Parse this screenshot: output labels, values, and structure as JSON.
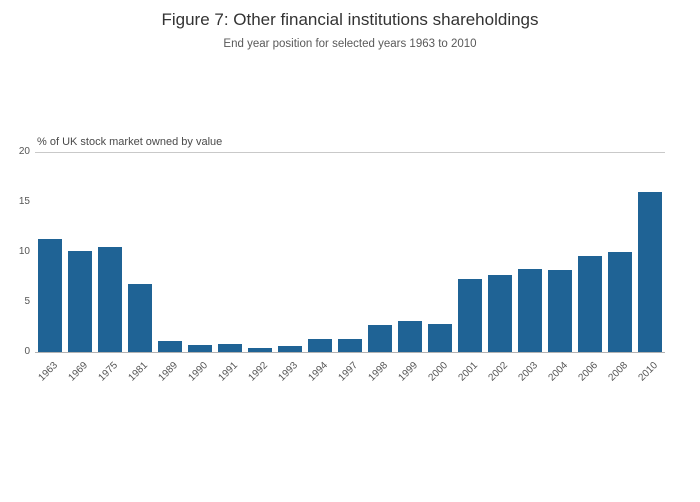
{
  "chart_data": {
    "type": "bar",
    "title": "Figure 7: Other financial institutions shareholdings",
    "subtitle": "End year position for selected years 1963 to 2010",
    "ylabel": "% of UK stock market owned by value",
    "xlabel": "",
    "categories": [
      "1963",
      "1969",
      "1975",
      "1981",
      "1989",
      "1990",
      "1991",
      "1992",
      "1993",
      "1994",
      "1997",
      "1998",
      "1999",
      "2000",
      "2001",
      "2002",
      "2003",
      "2004",
      "2006",
      "2008",
      "2010"
    ],
    "values": [
      11.3,
      10.1,
      10.5,
      6.8,
      1.1,
      0.7,
      0.8,
      0.4,
      0.6,
      1.3,
      1.3,
      2.7,
      3.1,
      2.8,
      7.3,
      7.7,
      8.3,
      8.2,
      9.6,
      10,
      16
    ],
    "ylim": [
      0,
      20
    ],
    "yticks": [
      0,
      5,
      10,
      15,
      20
    ],
    "grid_values": [
      20
    ],
    "legend": "none",
    "bar_color": "#1f6395"
  }
}
